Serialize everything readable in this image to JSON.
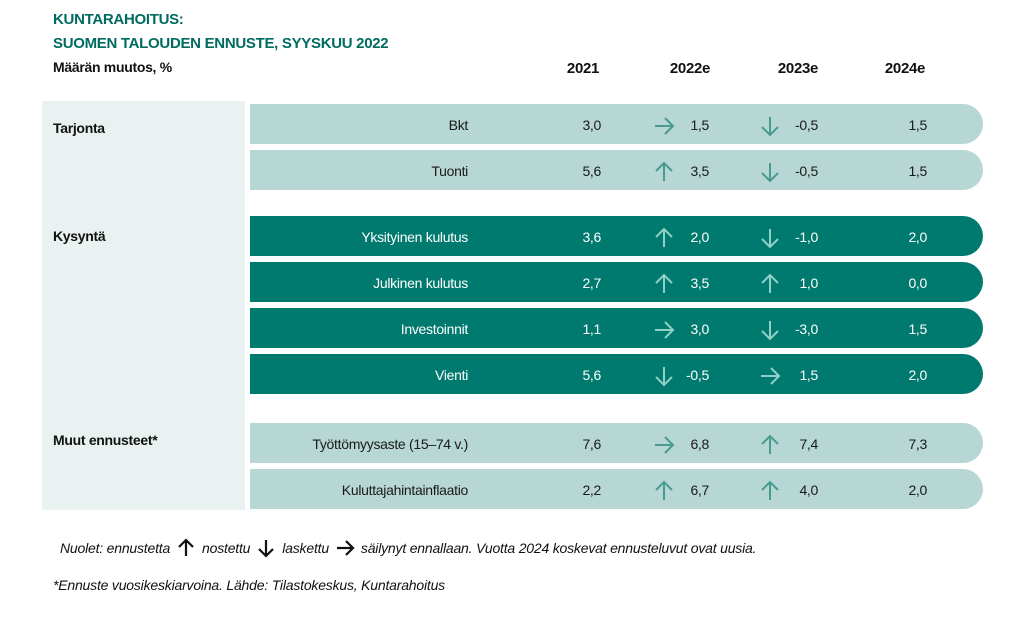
{
  "title_line1": "KUNTARAHOITUS:",
  "title_line2": "SUOMEN TALOUDEN ENNUSTE, SYYSKUU 2022",
  "subtitle": "Määrän muutos, %",
  "chart_data": {
    "type": "table",
    "columns": [
      "2021",
      "2022e",
      "2023e",
      "2024e"
    ],
    "groups": [
      {
        "name": "Tarjonta",
        "rows": [
          {
            "label": "Bkt",
            "v2021": "3,0",
            "dir2022": "right",
            "v2022": "1,5",
            "dir2023": "down",
            "v2023": "-0,5",
            "v2024": "1,5"
          },
          {
            "label": "Tuonti",
            "v2021": "5,6",
            "dir2022": "up",
            "v2022": "3,5",
            "dir2023": "down",
            "v2023": "-0,5",
            "v2024": "1,5"
          }
        ]
      },
      {
        "name": "Kysyntä",
        "rows": [
          {
            "label": "Yksityinen kulutus",
            "v2021": "3,6",
            "dir2022": "up",
            "v2022": "2,0",
            "dir2023": "down",
            "v2023": "-1,0",
            "v2024": "2,0"
          },
          {
            "label": "Julkinen kulutus",
            "v2021": "2,7",
            "dir2022": "up",
            "v2022": "3,5",
            "dir2023": "up",
            "v2023": "1,0",
            "v2024": "0,0"
          },
          {
            "label": "Investoinnit",
            "v2021": "1,1",
            "dir2022": "right",
            "v2022": "3,0",
            "dir2023": "down",
            "v2023": "-3,0",
            "v2024": "1,5"
          },
          {
            "label": "Vienti",
            "v2021": "5,6",
            "dir2022": "down",
            "v2022": "-0,5",
            "dir2023": "right",
            "v2023": "1,5",
            "v2024": "2,0"
          }
        ]
      },
      {
        "name": "Muut ennusteet*",
        "rows": [
          {
            "label": "Työttömyysaste (15–74 v.)",
            "v2021": "7,6",
            "dir2022": "right",
            "v2022": "6,8",
            "dir2023": "up",
            "v2023": "7,4",
            "v2024": "7,3"
          },
          {
            "label": "Kuluttajahintainflaatio",
            "v2021": "2,2",
            "dir2022": "up",
            "v2022": "6,7",
            "dir2023": "up",
            "v2023": "4,0",
            "v2024": "2,0"
          }
        ]
      }
    ]
  },
  "legend": {
    "prefix": "Nuolet: ennustetta",
    "up": "nostettu",
    "down": "laskettu",
    "right": "säilynyt ennallaan. Vuotta 2024 koskevat ennusteluvut ovat uusia."
  },
  "source": "*Ennuste vuosikeskiarvoina.  Lähde: Tilastokeskus, Kuntarahoitus",
  "colors": {
    "dark": "#007a6e",
    "light": "#b6d7d3",
    "side": "#e9f2f1",
    "arrow": "#4a9a8f"
  }
}
